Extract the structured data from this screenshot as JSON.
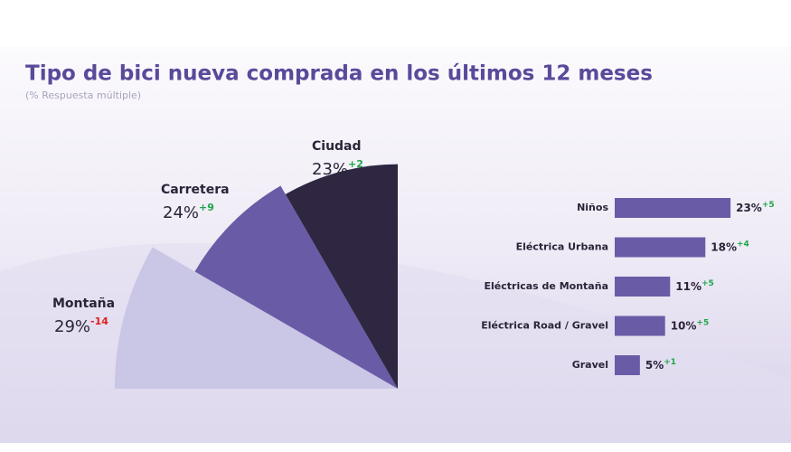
{
  "header": {
    "title": "Tipo de bici nueva comprada en los últimos 12 meses",
    "subtitle": "(% Respuesta múltiple)"
  },
  "chart_data": [
    {
      "type": "rose",
      "categories": [
        "Montaña",
        "Carretera",
        "Ciudad"
      ],
      "values": [
        29,
        24,
        23
      ],
      "value_labels": [
        "29%",
        "24%",
        "23%"
      ],
      "changes": [
        -14,
        9,
        2
      ],
      "change_labels": [
        "-14",
        "+9",
        "+2"
      ],
      "colors": [
        "#cac6e6",
        "#6a5ba6",
        "#2f2742"
      ]
    },
    {
      "type": "hbar",
      "categories": [
        "Niños",
        "Eléctrica Urbana",
        "Eléctricas de Montaña",
        "Eléctrica Road / Gravel",
        "Gravel"
      ],
      "values": [
        23,
        18,
        11,
        10,
        5
      ],
      "value_labels": [
        "23%",
        "18%",
        "11%",
        "10%",
        "5%"
      ],
      "changes": [
        5,
        4,
        5,
        5,
        1
      ],
      "change_labels": [
        "+5",
        "+4",
        "+5",
        "+5",
        "+1"
      ],
      "color": "#6a5ba6"
    }
  ]
}
